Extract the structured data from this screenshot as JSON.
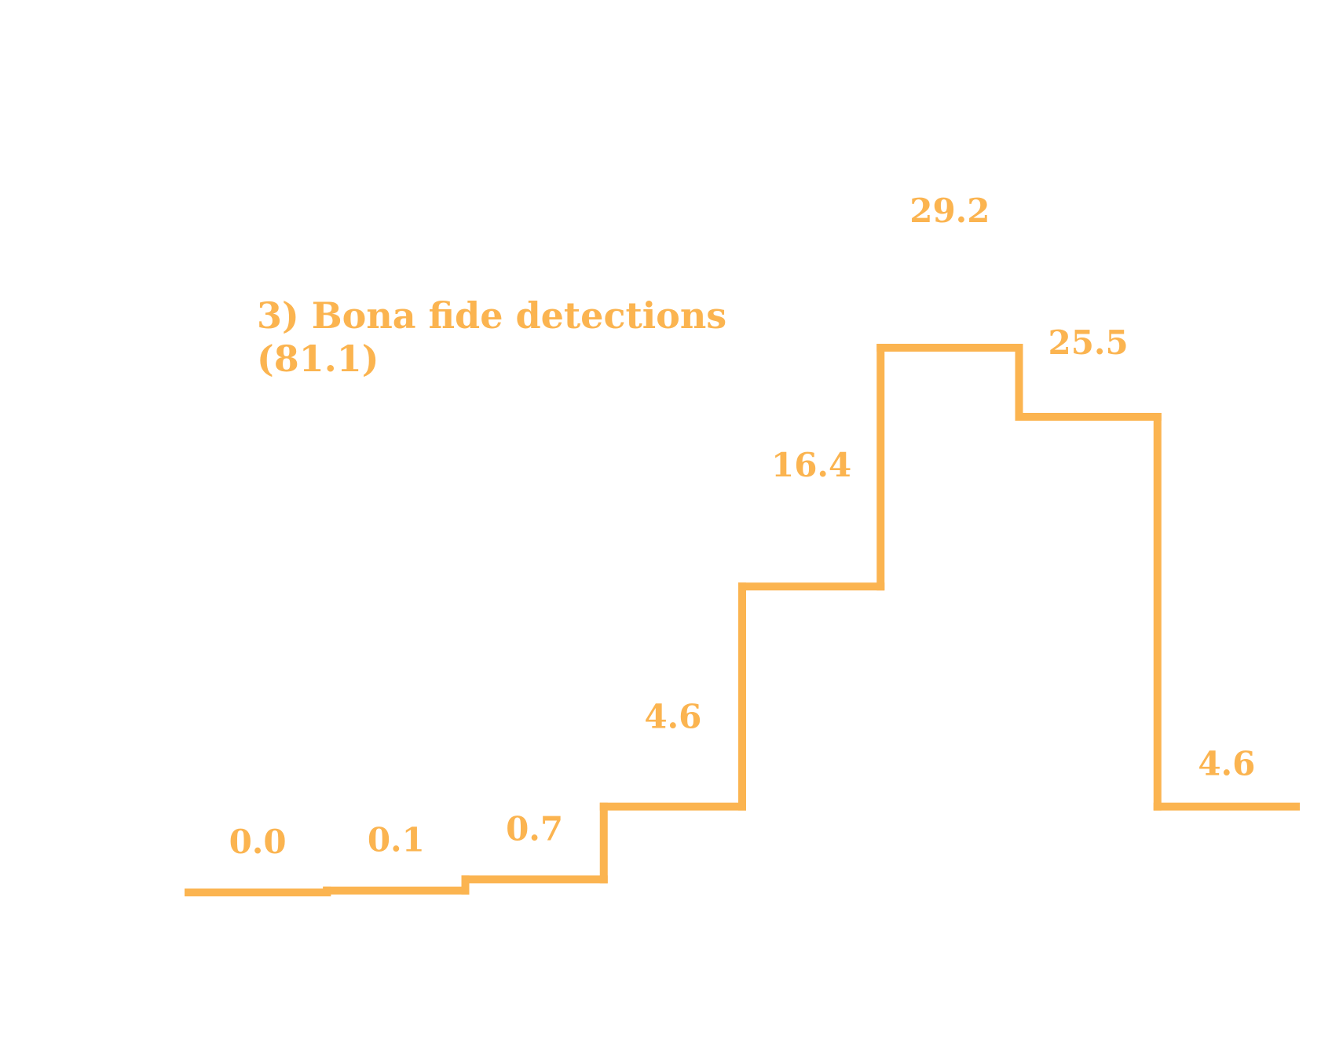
{
  "chart_data": {
    "type": "step",
    "title_lines": [
      "3) Bona fide detections",
      "(81.1)"
    ],
    "values": [
      0.0,
      0.1,
      0.7,
      4.6,
      16.4,
      29.2,
      25.5,
      4.6
    ],
    "labels": [
      "0.0",
      "0.1",
      "0.7",
      "4.6",
      "16.4",
      "29.2",
      "25.5",
      "4.6"
    ],
    "ylim": [
      0,
      30
    ],
    "grid": false,
    "axes_visible": false,
    "colors": {
      "line": "#FBB450",
      "text": "#FBB450",
      "background": "#FFFFFF"
    }
  }
}
